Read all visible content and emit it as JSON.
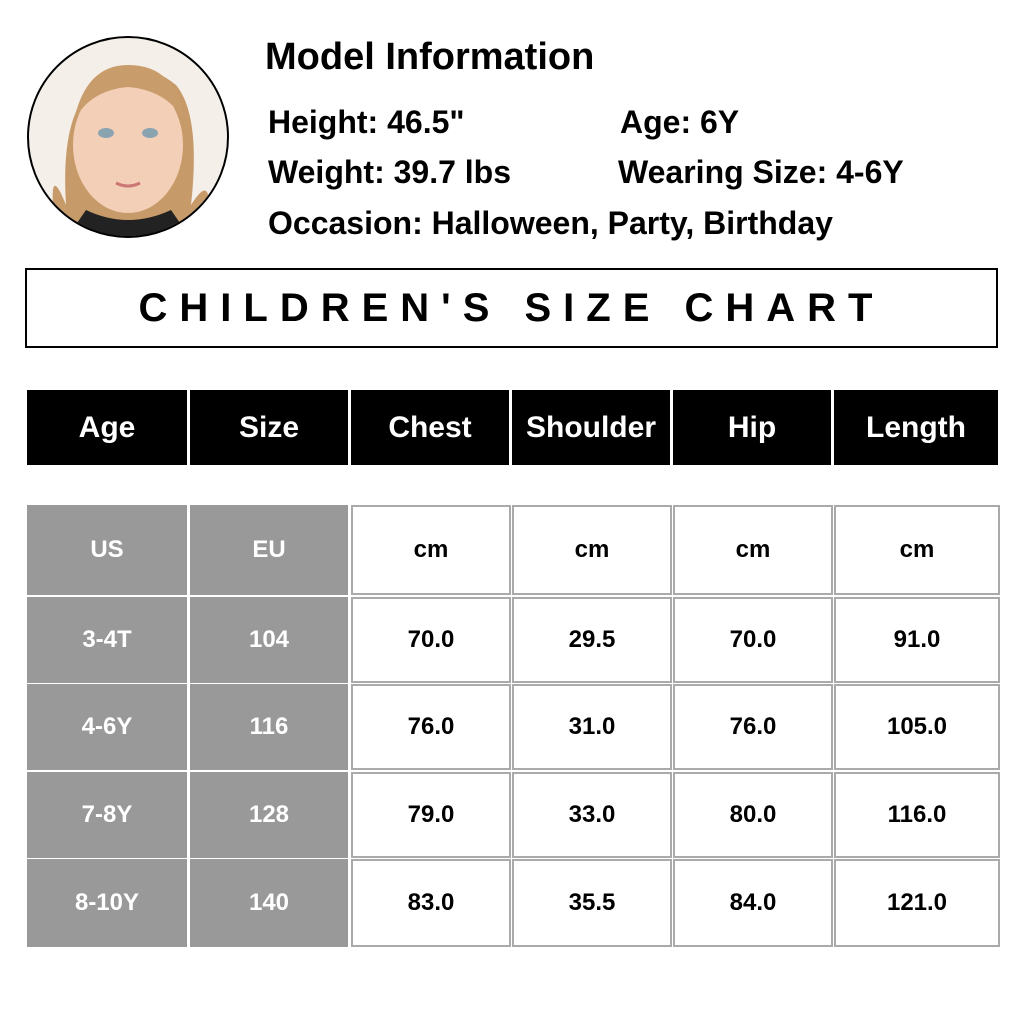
{
  "model": {
    "title": "Model Information",
    "height": "Height: 46.5\"",
    "age": "Age: 6Y",
    "weight": "Weight: 39.7 lbs",
    "wearing_size": "Wearing Size: 4-6Y",
    "occasion": "Occasion: Halloween, Party, Birthday"
  },
  "banner": "CHILDREN'S SIZE CHART",
  "table": {
    "header": [
      "Age",
      "Size",
      "Chest",
      "Shoulder",
      "Hip",
      "Length"
    ],
    "units": [
      "US",
      "EU",
      "cm",
      "cm",
      "cm",
      "cm"
    ],
    "rows": [
      [
        "3-4T",
        "104",
        "70.0",
        "29.5",
        "70.0",
        "91.0"
      ],
      [
        "4-6Y",
        "116",
        "76.0",
        "31.0",
        "76.0",
        "105.0"
      ],
      [
        "7-8Y",
        "128",
        "79.0",
        "33.0",
        "80.0",
        "116.0"
      ],
      [
        "8-10Y",
        "140",
        "83.0",
        "35.5",
        "84.0",
        "121.0"
      ]
    ]
  }
}
